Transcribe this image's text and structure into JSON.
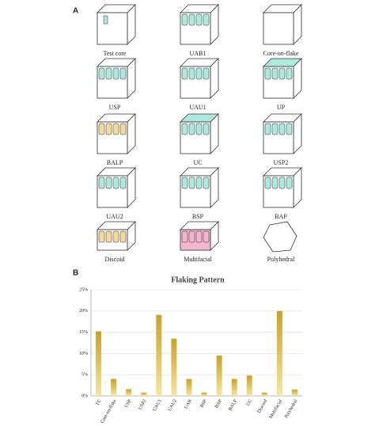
{
  "panel_a": {
    "label": "A",
    "diagrams": [
      "Test core",
      "UAB1",
      "Core-on-flake",
      "USP",
      "UAU1",
      "UP",
      "BALP",
      "UC",
      "USP2",
      "UAU2",
      "BSP",
      "BAP",
      "Discoid",
      "Multifacial",
      "Polyhedral"
    ]
  },
  "chart_data": {
    "type": "bar",
    "panel_label": "B",
    "title": "Flaking Pattern",
    "categories": [
      "TC",
      "Core-on-flake",
      "USP",
      "USP2",
      "UAU1",
      "UAU2",
      "UAB",
      "BSP",
      "BAP",
      "BALP",
      "UC",
      "Discoid",
      "Multifacial",
      "Polyhedral"
    ],
    "values": [
      15.2,
      4.0,
      1.6,
      0.8,
      19.1,
      13.5,
      4.0,
      0.8,
      9.5,
      4.0,
      4.8,
      0.8,
      20.0,
      1.5
    ],
    "color": "#c9a227",
    "ylim": [
      0,
      25
    ],
    "yticks": [
      {
        "value": 0,
        "label": "0%"
      },
      {
        "value": 5,
        "label": "5%"
      },
      {
        "value": 10,
        "label": "10%"
      },
      {
        "value": 15,
        "label": "15%"
      },
      {
        "value": 20,
        "label": "20%"
      },
      {
        "value": 25,
        "label": "25%"
      }
    ],
    "grid": true
  }
}
